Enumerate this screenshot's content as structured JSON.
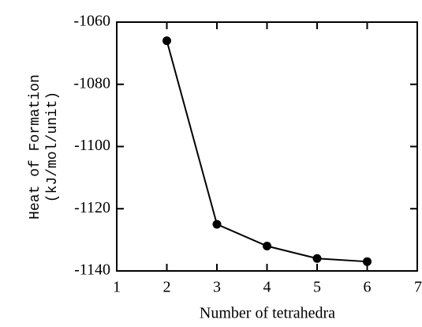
{
  "chart_data": {
    "type": "line",
    "xlabel": "Number of tetrahedra",
    "ylabel": [
      "Heat of Formation",
      "(kJ/mol/unit)"
    ],
    "x": [
      2,
      3,
      4,
      5,
      6
    ],
    "series": [
      {
        "name": null,
        "color": "#000000",
        "values": [
          -1066,
          -1125,
          -1132,
          -1136,
          -1137
        ]
      }
    ],
    "xlim": [
      1,
      7
    ],
    "xticks": [
      1,
      2,
      3,
      4,
      5,
      6,
      7
    ],
    "ylim": [
      -1140,
      -1060
    ],
    "yticks": [
      -1140,
      -1120,
      -1100,
      -1080,
      -1060
    ],
    "grid": false
  }
}
